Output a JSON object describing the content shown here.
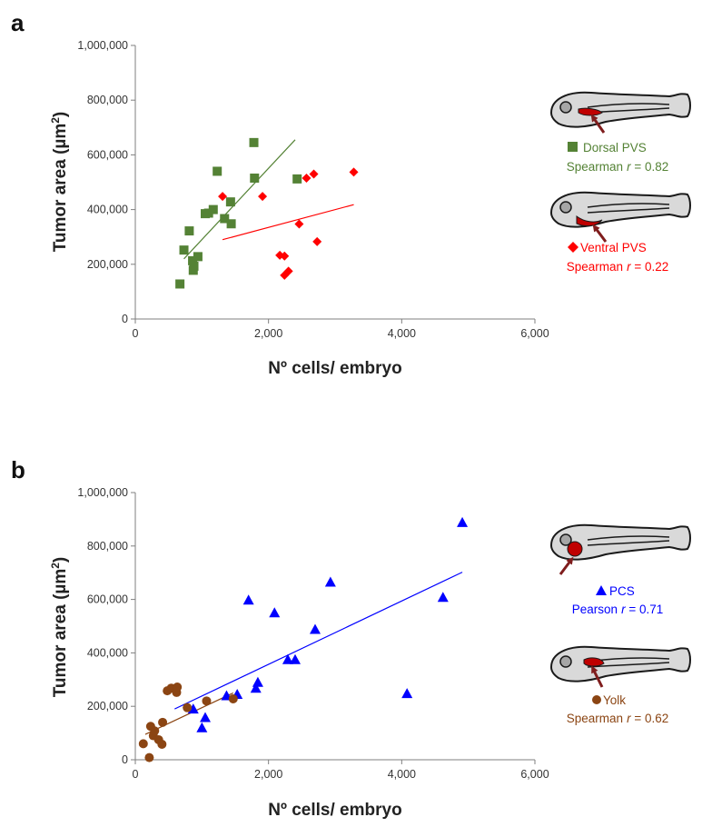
{
  "figure": {
    "panels": [
      {
        "letter": "a",
        "xlabel": "Nº cells/ embryo",
        "ylabel_main": "Tumor area (µm",
        "ylabel_sup": "2",
        "ylabel_close": ")",
        "legend": [
          {
            "name": "Dorsal PVS",
            "stat": "Spearman",
            "stat_value": " = 0.82",
            "color": "#548235",
            "marker": "square"
          },
          {
            "name": "Ventral PVS",
            "stat": "Spearman",
            "stat_value": " = 0.22",
            "color": "#ff0000",
            "marker": "diamond"
          }
        ]
      },
      {
        "letter": "b",
        "xlabel": "Nº cells/ embryo",
        "ylabel_main": "Tumor area (µm",
        "ylabel_sup": "2",
        "ylabel_close": ")",
        "legend": [
          {
            "name": "PCS",
            "stat": "Pearson",
            "stat_value": " = 0.71",
            "color": "#0000ff",
            "marker": "triangle"
          },
          {
            "name": "Yolk",
            "stat": "Spearman",
            "stat_value": " = 0.62",
            "color": "#8b4513",
            "marker": "circle"
          }
        ]
      }
    ],
    "stat_symbol": "r"
  },
  "chart_data": [
    {
      "type": "scatter",
      "title": "",
      "xlabel": "Nº cells/ embryo",
      "ylabel": "Tumor area (µm2)",
      "xlim": [
        0,
        6000
      ],
      "ylim": [
        0,
        1000000
      ],
      "xticks": [
        "0",
        "2,000",
        "4,000",
        "6,000"
      ],
      "yticks": [
        "0",
        "200,000",
        "400,000",
        "600,000",
        "800,000",
        "1,000,000"
      ],
      "grid": false,
      "legend_position": "right",
      "series": [
        {
          "name": "Dorsal PVS",
          "color": "#548235",
          "marker": "square",
          "points": [
            [
              670,
              128000
            ],
            [
              730,
              252000
            ],
            [
              810,
              322000
            ],
            [
              860,
              213000
            ],
            [
              870,
              178000
            ],
            [
              880,
              193000
            ],
            [
              940,
              228000
            ],
            [
              1050,
              385000
            ],
            [
              1100,
              387000
            ],
            [
              1170,
              400000
            ],
            [
              1230,
              540000
            ],
            [
              1340,
              367000
            ],
            [
              1430,
              428000
            ],
            [
              1440,
              348000
            ],
            [
              1780,
              645000
            ],
            [
              1790,
              515000
            ],
            [
              2430,
              512000
            ]
          ],
          "trendline": [
            [
              730,
              220000
            ],
            [
              2400,
              655000
            ]
          ]
        },
        {
          "name": "Ventral PVS",
          "color": "#ff0000",
          "marker": "diamond",
          "points": [
            [
              1310,
              448000
            ],
            [
              1910,
              448000
            ],
            [
              2170,
              233000
            ],
            [
              2240,
              230000
            ],
            [
              2240,
              160000
            ],
            [
              2300,
              175000
            ],
            [
              2460,
              347000
            ],
            [
              2570,
              515000
            ],
            [
              2680,
              530000
            ],
            [
              2730,
              283000
            ],
            [
              3280,
              537000
            ]
          ],
          "trendline": [
            [
              1310,
              290000
            ],
            [
              3280,
              418000
            ]
          ]
        }
      ]
    },
    {
      "type": "scatter",
      "title": "",
      "xlabel": "Nº cells/ embryo",
      "ylabel": "Tumor area (µm2)",
      "xlim": [
        0,
        6000
      ],
      "ylim": [
        0,
        1000000
      ],
      "xticks": [
        "0",
        "2,000",
        "4,000",
        "6,000"
      ],
      "yticks": [
        "0",
        "200,000",
        "400,000",
        "600,000",
        "800,000",
        "1,000,000"
      ],
      "grid": false,
      "legend_position": "right",
      "series": [
        {
          "name": "PCS",
          "color": "#0000ff",
          "marker": "triangle",
          "points": [
            [
              870,
              190000
            ],
            [
              1000,
              120000
            ],
            [
              1050,
              158000
            ],
            [
              1370,
              240000
            ],
            [
              1530,
              245000
            ],
            [
              1700,
              598000
            ],
            [
              1810,
              268000
            ],
            [
              1840,
              290000
            ],
            [
              2090,
              550000
            ],
            [
              2290,
              375000
            ],
            [
              2400,
              375000
            ],
            [
              2700,
              488000
            ],
            [
              2930,
              665000
            ],
            [
              4080,
              248000
            ],
            [
              4620,
              608000
            ],
            [
              4910,
              888000
            ]
          ],
          "trendline": [
            [
              590,
              190000
            ],
            [
              4910,
              702000
            ]
          ]
        },
        {
          "name": "Yolk",
          "color": "#8b4513",
          "marker": "circle",
          "points": [
            [
              120,
              60000
            ],
            [
              210,
              8000
            ],
            [
              230,
              125000
            ],
            [
              270,
              90000
            ],
            [
              290,
              108000
            ],
            [
              350,
              75000
            ],
            [
              400,
              58000
            ],
            [
              410,
              140000
            ],
            [
              480,
              258000
            ],
            [
              540,
              268000
            ],
            [
              620,
              252000
            ],
            [
              630,
              272000
            ],
            [
              780,
              195000
            ],
            [
              1070,
              220000
            ],
            [
              1470,
              228000
            ]
          ],
          "trendline": [
            [
              150,
              95000
            ],
            [
              1470,
              250000
            ]
          ]
        }
      ]
    }
  ]
}
